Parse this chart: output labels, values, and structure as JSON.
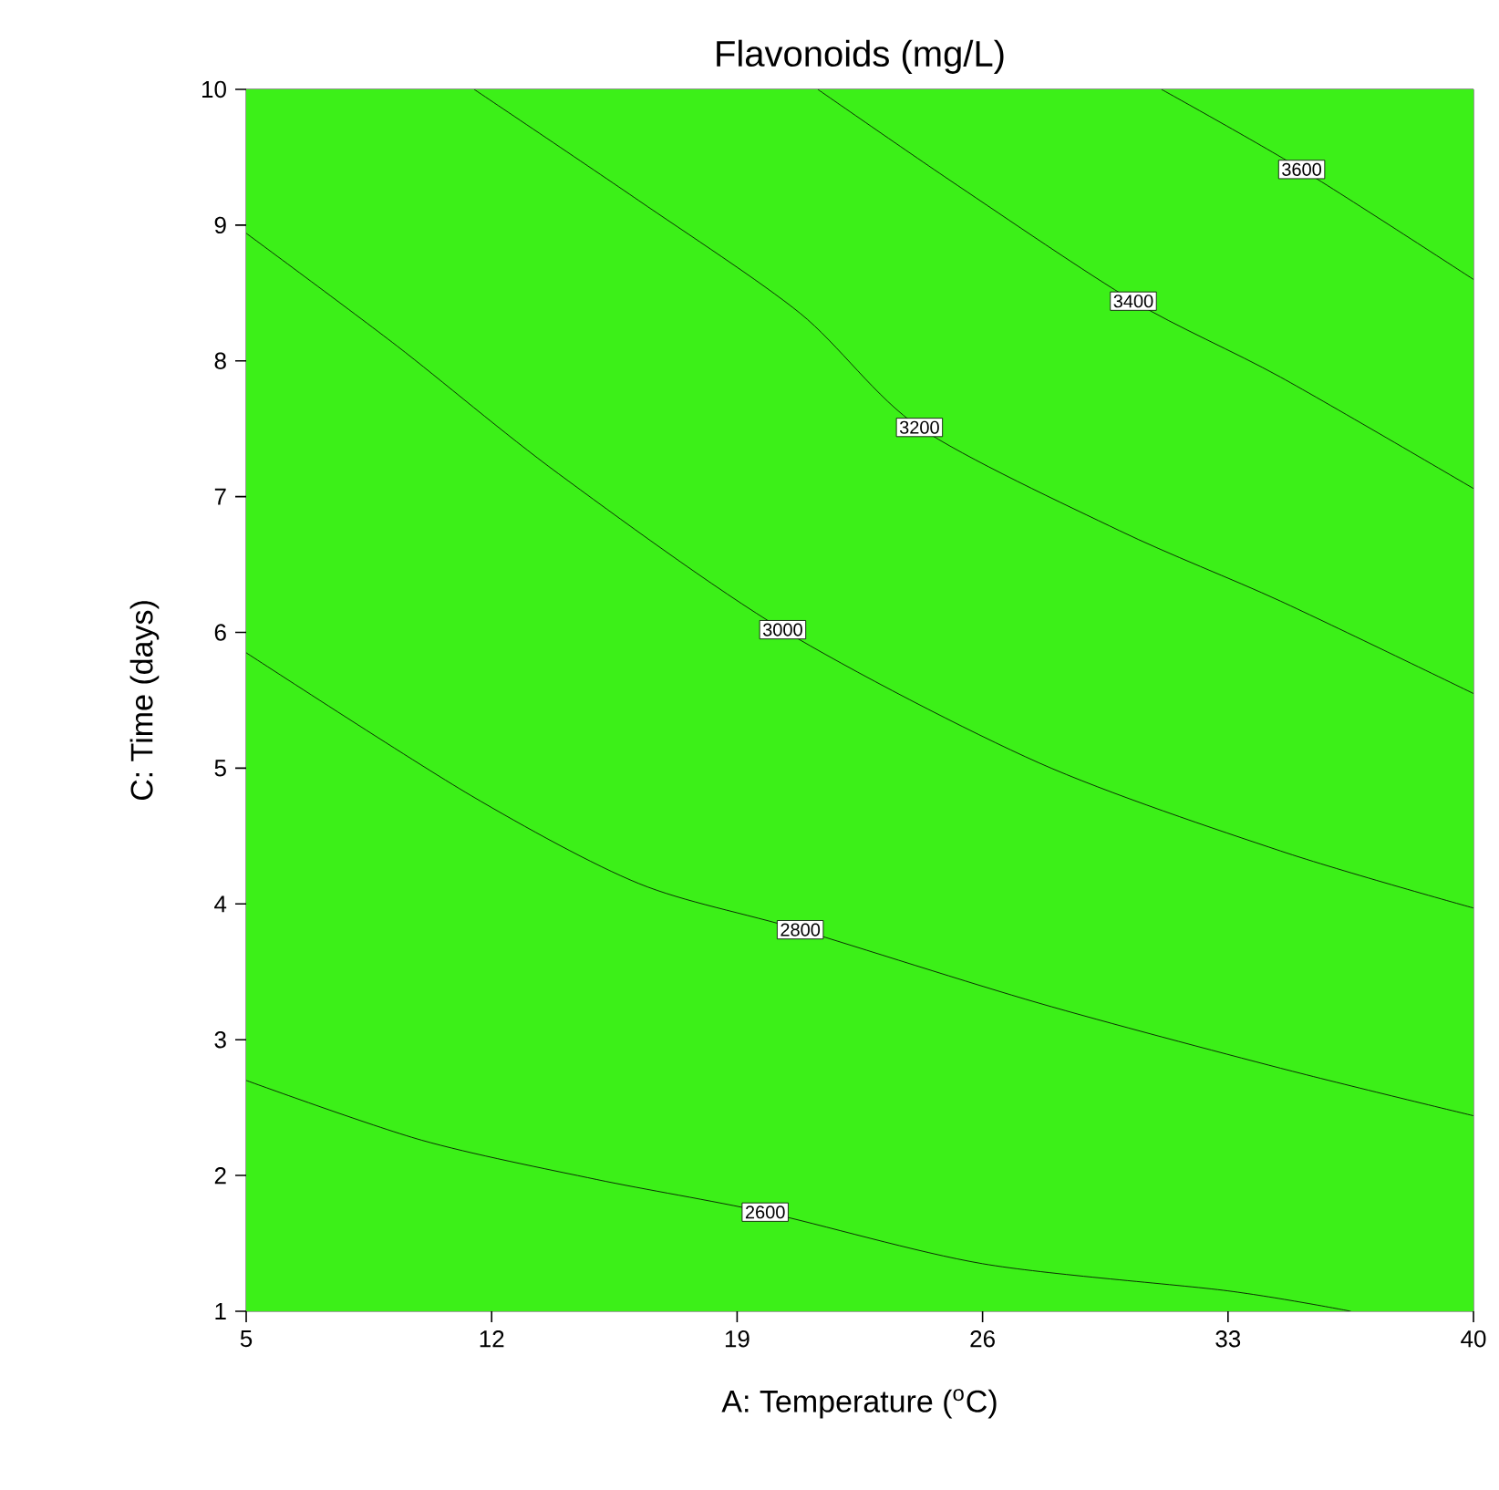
{
  "chart_data": {
    "type": "line",
    "title": "Flavonoids (mg/L)",
    "xlabel": "A: Temperature ($^{o}$C)",
    "ylabel": "C: Time (days)",
    "xlim": [
      5,
      40
    ],
    "ylim": [
      1,
      10
    ],
    "xticks": [
      5,
      12,
      19,
      26,
      33,
      40
    ],
    "yticks": [
      1,
      2,
      3,
      4,
      5,
      6,
      7,
      8,
      9,
      10
    ],
    "grid": false,
    "marker": "none",
    "line_style": "solid",
    "series": [
      {
        "name": "2600",
        "color": "#000000",
        "x": [
          5,
          10,
          15,
          19.8,
          26,
          33,
          36.5
        ],
        "values": [
          2.7,
          2.26,
          1.97,
          1.73,
          1.35,
          1.15,
          1.0
        ]
      },
      {
        "name": "2800",
        "color": "#000000",
        "x": [
          5,
          11.4,
          16.2,
          20.8,
          27.6,
          34.5,
          40
        ],
        "values": [
          5.85,
          4.8,
          4.15,
          3.81,
          3.27,
          2.79,
          2.44
        ]
      },
      {
        "name": "3000",
        "color": "#000000",
        "x": [
          5,
          9.3,
          13.9,
          20.3,
          27.6,
          34.5,
          40
        ],
        "values": [
          8.94,
          8.11,
          7.17,
          6.02,
          5.04,
          4.39,
          3.97
        ]
      },
      {
        "name": "3200",
        "color": "#000000",
        "x": [
          11.5,
          16.2,
          20.8,
          24.2,
          29.9,
          34.5,
          40
        ],
        "values": [
          10,
          9.18,
          8.35,
          7.51,
          6.75,
          6.23,
          5.55
        ]
      },
      {
        "name": "3400",
        "color": "#000000",
        "x": [
          21.3,
          25.3,
          30.3,
          34.5,
          40
        ],
        "values": [
          10,
          9.29,
          8.44,
          7.88,
          7.06
        ]
      },
      {
        "name": "3600",
        "color": "#000000",
        "x": [
          31.1,
          35.1,
          40
        ],
        "values": [
          10,
          9.41,
          8.6
        ]
      }
    ]
  }
}
